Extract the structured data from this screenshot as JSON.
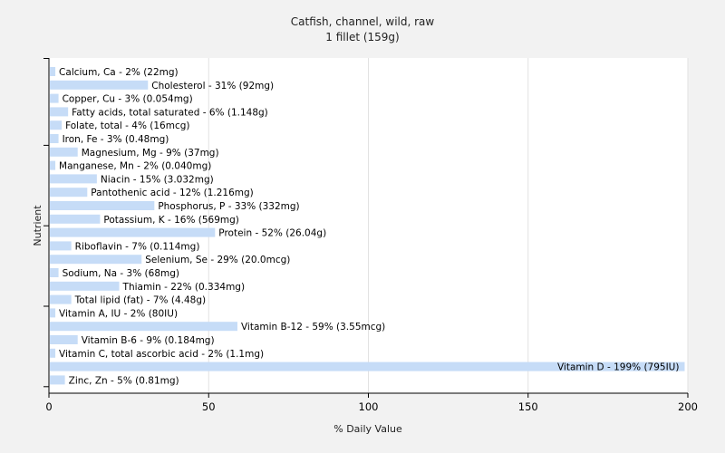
{
  "chart_data": {
    "type": "bar",
    "orientation": "horizontal",
    "title": "Catfish, channel, wild, raw",
    "subtitle": "1 fillet (159g)",
    "xlabel": "% Daily Value",
    "ylabel": "Nutrient",
    "xlim": [
      0,
      200
    ],
    "xticks": [
      0,
      50,
      100,
      150,
      200
    ],
    "grid": true,
    "bar_color": "#c6dcf7",
    "categories": [
      "Calcium, Ca",
      "Cholesterol",
      "Copper, Cu",
      "Fatty acids, total saturated",
      "Folate, total",
      "Iron, Fe",
      "Magnesium, Mg",
      "Manganese, Mn",
      "Niacin",
      "Pantothenic acid",
      "Phosphorus, P",
      "Potassium, K",
      "Protein",
      "Riboflavin",
      "Selenium, Se",
      "Sodium, Na",
      "Thiamin",
      "Total lipid (fat)",
      "Vitamin A, IU",
      "Vitamin B-12",
      "Vitamin B-6",
      "Vitamin C, total ascorbic acid",
      "Vitamin D",
      "Zinc, Zn"
    ],
    "values": [
      2,
      31,
      3,
      6,
      4,
      3,
      9,
      2,
      15,
      12,
      33,
      16,
      52,
      7,
      29,
      3,
      22,
      7,
      2,
      59,
      9,
      2,
      199,
      5
    ],
    "labels": [
      "Calcium, Ca - 2% (22mg)",
      "Cholesterol - 31% (92mg)",
      "Copper, Cu - 3% (0.054mg)",
      "Fatty acids, total saturated - 6% (1.148g)",
      "Folate, total - 4% (16mcg)",
      "Iron, Fe - 3% (0.48mg)",
      "Magnesium, Mg - 9% (37mg)",
      "Manganese, Mn - 2% (0.040mg)",
      "Niacin - 15% (3.032mg)",
      "Pantothenic acid - 12% (1.216mg)",
      "Phosphorus, P - 33% (332mg)",
      "Potassium, K - 16% (569mg)",
      "Protein - 52% (26.04g)",
      "Riboflavin - 7% (0.114mg)",
      "Selenium, Se - 29% (20.0mcg)",
      "Sodium, Na - 3% (68mg)",
      "Thiamin - 22% (0.334mg)",
      "Total lipid (fat) - 7% (4.48g)",
      "Vitamin A, IU - 2% (80IU)",
      "Vitamin B-12 - 59% (3.55mcg)",
      "Vitamin B-6 - 9% (0.184mg)",
      "Vitamin C, total ascorbic acid - 2% (1.1mg)",
      "Vitamin D - 199% (795IU)",
      "Zinc, Zn - 5% (0.81mg)"
    ]
  }
}
